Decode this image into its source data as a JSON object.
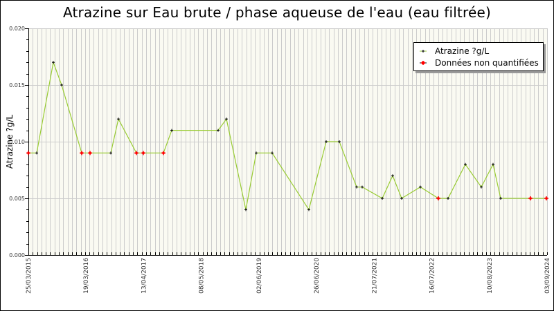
{
  "chart_data": {
    "type": "line",
    "title": "Atrazine sur Eau brute / phase aqueuse de l'eau (eau filtrée)",
    "xlabel": "",
    "ylabel": "Atrazine ?g/L",
    "ylim": [
      0,
      0.02
    ],
    "y_ticks": [
      "0.000",
      "0.005",
      "0.010",
      "0.015",
      "0.020"
    ],
    "x_tick_labels": [
      "25/03/2015",
      "19/03/2016",
      "13/04/2017",
      "08/05/2018",
      "02/06/2019",
      "26/06/2020",
      "21/07/2021",
      "16/07/2022",
      "10/08/2023",
      "03/09/2024"
    ],
    "grid": true,
    "legend_position": "top-right",
    "series": [
      {
        "name": "Atrazine ?g/L",
        "color": "#99cc33",
        "marker_color": "#000000",
        "points": [
          {
            "px": 41,
            "value": 0.009,
            "quantified": false
          },
          {
            "px": 53,
            "value": 0.009,
            "quantified": true
          },
          {
            "px": 77,
            "value": 0.017,
            "quantified": true
          },
          {
            "px": 89,
            "value": 0.015,
            "quantified": true
          },
          {
            "px": 118,
            "value": 0.009,
            "quantified": false
          },
          {
            "px": 130,
            "value": 0.009,
            "quantified": false
          },
          {
            "px": 160,
            "value": 0.009,
            "quantified": true
          },
          {
            "px": 171,
            "value": 0.012,
            "quantified": true
          },
          {
            "px": 197,
            "value": 0.009,
            "quantified": false
          },
          {
            "px": 207,
            "value": 0.009,
            "quantified": false
          },
          {
            "px": 236,
            "value": 0.009,
            "quantified": false
          },
          {
            "px": 248,
            "value": 0.011,
            "quantified": true
          },
          {
            "px": 315,
            "value": 0.011,
            "quantified": true
          },
          {
            "px": 327,
            "value": 0.012,
            "quantified": true
          },
          {
            "px": 355,
            "value": 0.004,
            "quantified": true
          },
          {
            "px": 370,
            "value": 0.009,
            "quantified": true
          },
          {
            "px": 393,
            "value": 0.009,
            "quantified": true
          },
          {
            "px": 446,
            "value": 0.004,
            "quantified": true
          },
          {
            "px": 471,
            "value": 0.01,
            "quantified": true
          },
          {
            "px": 490,
            "value": 0.01,
            "quantified": true
          },
          {
            "px": 515,
            "value": 0.006,
            "quantified": true
          },
          {
            "px": 523,
            "value": 0.006,
            "quantified": true
          },
          {
            "px": 552,
            "value": 0.005,
            "quantified": true
          },
          {
            "px": 567,
            "value": 0.007,
            "quantified": true
          },
          {
            "px": 580,
            "value": 0.005,
            "quantified": true
          },
          {
            "px": 607,
            "value": 0.006,
            "quantified": true
          },
          {
            "px": 633,
            "value": 0.005,
            "quantified": false
          },
          {
            "px": 647,
            "value": 0.005,
            "quantified": true
          },
          {
            "px": 672,
            "value": 0.008,
            "quantified": true
          },
          {
            "px": 695,
            "value": 0.006,
            "quantified": true
          },
          {
            "px": 712,
            "value": 0.008,
            "quantified": true
          },
          {
            "px": 723,
            "value": 0.005,
            "quantified": true
          },
          {
            "px": 766,
            "value": 0.005,
            "quantified": false
          },
          {
            "px": 789,
            "value": 0.005,
            "quantified": false
          }
        ]
      },
      {
        "name": "Données non quantifiées",
        "color": "#ff0000",
        "marker_color": "#ff0000"
      }
    ]
  },
  "legend": {
    "items": [
      {
        "label": "Atrazine ?g/L"
      },
      {
        "label": "Données non quantifiées"
      }
    ]
  },
  "colors": {
    "plot_bg": "#fafaf2",
    "grid": "#cccccc",
    "line": "#99cc33",
    "marker": "#000000",
    "non_quantified": "#ff0000"
  }
}
